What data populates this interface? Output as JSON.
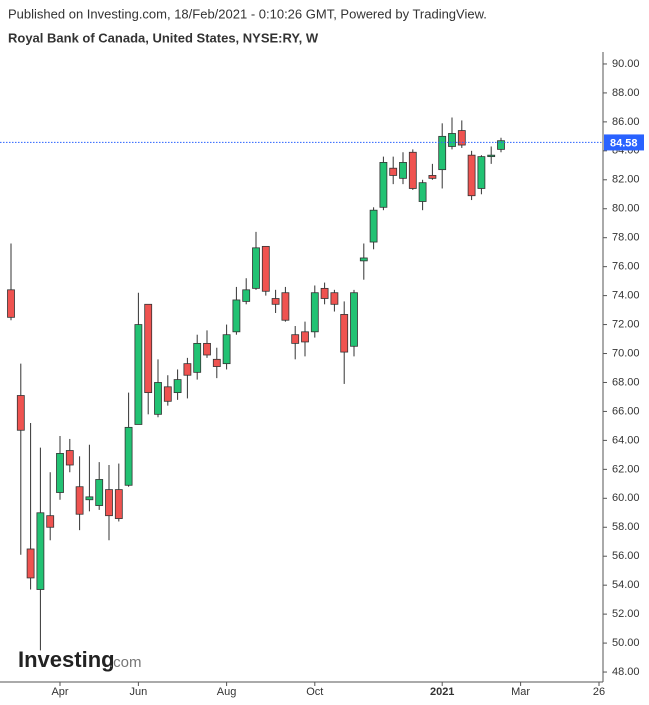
{
  "header": {
    "published": "Published on Investing.com, 18/Feb/2021 - 0:10:26 GMT, Powered by TradingView.",
    "title": "Royal Bank of Canada, United States, NYSE:RY, W"
  },
  "watermark": {
    "brand": "Investing",
    "suffix": ".com"
  },
  "chart_data": {
    "type": "candlestick",
    "categories": [
      null,
      null,
      null,
      null,
      null,
      "Apr",
      null,
      null,
      null,
      null,
      null,
      null,
      null,
      "Jun",
      null,
      null,
      null,
      null,
      null,
      null,
      null,
      null,
      "Aug",
      null,
      null,
      null,
      null,
      null,
      null,
      null,
      null,
      "Oct",
      null,
      null,
      null,
      null,
      null,
      null,
      null,
      null,
      null,
      null,
      null,
      null,
      "2021",
      null,
      null,
      null,
      null,
      null,
      null,
      null,
      "Mar",
      null,
      null,
      null,
      null,
      null,
      null,
      null,
      "26"
    ],
    "open": [
      74.4,
      67.1,
      56.5,
      53.7,
      58.8,
      60.4,
      63.3,
      60.8,
      59.9,
      59.5,
      60.6,
      60.6,
      60.9,
      65.1,
      73.4,
      65.8,
      67.7,
      67.3,
      69.3,
      68.7,
      70.7,
      69.6,
      69.3,
      71.5,
      73.6,
      74.5,
      77.4,
      73.8,
      74.2,
      71.3,
      71.5,
      71.5,
      74.5,
      74.2,
      72.7,
      70.5,
      76.4,
      77.7,
      80.1,
      82.8,
      82.1,
      83.9,
      80.5,
      82.3,
      82.7,
      84.3,
      85.4,
      83.7,
      81.4,
      83.6,
      84.1,
      null,
      null,
      null,
      null,
      null,
      null,
      null,
      null,
      null,
      null
    ],
    "high": [
      77.6,
      69.3,
      65.2,
      63.5,
      61.8,
      64.3,
      64.1,
      62.9,
      63.7,
      62.5,
      62.3,
      62.4,
      67.3,
      74.2,
      73.4,
      69.6,
      68.5,
      68.9,
      69.7,
      71.3,
      71.6,
      70.4,
      72.0,
      74.6,
      75.2,
      78.4,
      77.4,
      74.4,
      74.6,
      71.9,
      72.2,
      74.7,
      74.9,
      74.4,
      73.6,
      74.4,
      77.6,
      80.1,
      83.6,
      83.6,
      83.9,
      84.1,
      82.0,
      83.1,
      85.9,
      86.3,
      86.1,
      84.0,
      83.7,
      84.3,
      84.9,
      null,
      null,
      null,
      null,
      null,
      null,
      null,
      null,
      null,
      null
    ],
    "low": [
      72.3,
      56.1,
      53.7,
      49.5,
      57.1,
      59.9,
      61.8,
      57.8,
      59.1,
      59.2,
      57.1,
      58.4,
      60.8,
      65.1,
      65.8,
      65.6,
      66.4,
      66.8,
      66.9,
      68.2,
      69.7,
      68.3,
      68.9,
      71.3,
      73.4,
      74.4,
      74.0,
      72.8,
      72.2,
      69.6,
      69.8,
      71.1,
      73.4,
      72.9,
      67.9,
      69.8,
      75.1,
      77.2,
      79.9,
      81.7,
      81.7,
      81.3,
      79.9,
      82.0,
      81.4,
      84.1,
      84.2,
      80.6,
      81.0,
      83.1,
      83.9,
      null,
      null,
      null,
      null,
      null,
      null,
      null,
      null,
      null,
      null
    ],
    "close": [
      72.5,
      64.7,
      54.5,
      59.0,
      58.0,
      63.1,
      62.3,
      58.9,
      60.1,
      61.3,
      58.8,
      58.6,
      64.9,
      72.0,
      67.3,
      68.0,
      66.7,
      68.2,
      68.5,
      70.7,
      69.9,
      69.1,
      71.3,
      73.7,
      74.4,
      77.3,
      74.3,
      73.4,
      72.3,
      70.7,
      70.8,
      74.2,
      73.8,
      73.4,
      70.1,
      74.2,
      76.6,
      79.9,
      83.2,
      82.3,
      83.2,
      81.4,
      81.8,
      82.1,
      85.0,
      85.2,
      84.4,
      80.9,
      83.6,
      83.7,
      84.7,
      null,
      null,
      null,
      null,
      null,
      null,
      null,
      null,
      null,
      null
    ],
    "up_color": "#22c273",
    "down_color": "#ef5350",
    "wick_color": "#333333",
    "last_price": 84.58,
    "last_price_color": "#2962ff",
    "ylim": [
      47.45,
      90.55
    ],
    "yticks": [
      {
        "value": 48,
        "label": "48.00"
      },
      {
        "value": 50,
        "label": "50.00"
      },
      {
        "value": 52,
        "label": "52.00"
      },
      {
        "value": 54,
        "label": "54.00"
      },
      {
        "value": 56,
        "label": "56.00"
      },
      {
        "value": 58,
        "label": "58.00"
      },
      {
        "value": 60,
        "label": "60.00"
      },
      {
        "value": 62,
        "label": "62.00"
      },
      {
        "value": 64,
        "label": "64.00"
      },
      {
        "value": 66,
        "label": "66.00"
      },
      {
        "value": 68,
        "label": "68.00"
      },
      {
        "value": 70,
        "label": "70.00"
      },
      {
        "value": 72,
        "label": "72.00"
      },
      {
        "value": 74,
        "label": "74.00"
      },
      {
        "value": 76,
        "label": "76.00"
      },
      {
        "value": 78,
        "label": "78.00"
      },
      {
        "value": 80,
        "label": "80.00"
      },
      {
        "value": 82,
        "label": "82.00"
      },
      {
        "value": 84,
        "label": "84.00"
      },
      {
        "value": 86,
        "label": "86.00"
      },
      {
        "value": 88,
        "label": "88.00"
      },
      {
        "value": 90,
        "label": "90.00"
      }
    ]
  }
}
